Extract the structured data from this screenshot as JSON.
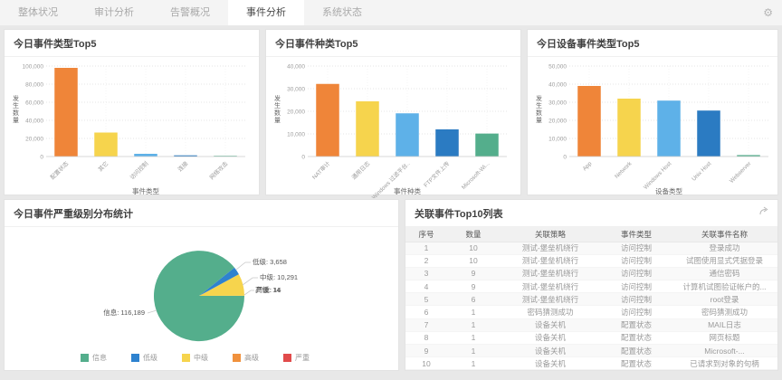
{
  "nav": {
    "tabs": [
      {
        "label": "整体状况",
        "active": false
      },
      {
        "label": "审计分析",
        "active": false
      },
      {
        "label": "告警概况",
        "active": false
      },
      {
        "label": "事件分析",
        "active": true
      },
      {
        "label": "系统状态",
        "active": false
      }
    ]
  },
  "palette": {
    "bar_colors": [
      "#ef8539",
      "#f6d44d",
      "#5eb1e8",
      "#2b7bc2",
      "#54ae8c"
    ],
    "grid": "#dddddd",
    "axis": "#cccccc"
  },
  "chart_data": [
    {
      "type": "bar",
      "title": "今日事件类型Top5",
      "categories": [
        "配置状态",
        "其它",
        "访问控制",
        "连接",
        "网络攻击"
      ],
      "values": [
        98000,
        26500,
        3000,
        1300,
        250
      ],
      "xlabel": "事件类型",
      "ylabel": "发生数量",
      "ylim": [
        0,
        100000
      ],
      "yticks": [
        0,
        20000,
        40000,
        60000,
        80000,
        100000
      ],
      "grid": "dotted",
      "colors": [
        "#ef8539",
        "#f6d44d",
        "#5eb1e8",
        "#2b7bc2",
        "#54ae8c"
      ]
    },
    {
      "type": "bar",
      "title": "今日事件种类Top5",
      "categories": [
        "NAT审计",
        "通用日志",
        "Windows 过滤平台..",
        "FTP文件上传",
        "Microsoft-Wi..."
      ],
      "values": [
        32100,
        24400,
        19100,
        12000,
        10150
      ],
      "xlabel": "事件种类",
      "ylabel": "发生数量",
      "ylim": [
        0,
        40000
      ],
      "yticks": [
        0,
        10000,
        20000,
        30000,
        40000
      ],
      "grid": "dotted",
      "colors": [
        "#ef8539",
        "#f6d44d",
        "#5eb1e8",
        "#2b7bc2",
        "#54ae8c"
      ]
    },
    {
      "type": "bar",
      "title": "今日设备事件类型Top5",
      "categories": [
        "App",
        "Network",
        "Windows Host",
        "Unix Host",
        "Webserver"
      ],
      "values": [
        39000,
        32000,
        30900,
        25400,
        800
      ],
      "xlabel": "设备类型",
      "ylabel": "发生数量",
      "ylim": [
        0,
        50000
      ],
      "yticks": [
        0,
        10000,
        20000,
        30000,
        40000,
        50000
      ],
      "grid": "dotted",
      "colors": [
        "#ef8539",
        "#f6d44d",
        "#5eb1e8",
        "#2b7bc2",
        "#54ae8c"
      ]
    },
    {
      "type": "pie",
      "title": "今日事件严重级别分布统计",
      "slices": [
        {
          "name": "信息",
          "value": 116189,
          "color": "#54ae8c"
        },
        {
          "name": "低级",
          "value": 3658,
          "color": "#2e82cf"
        },
        {
          "name": "中级",
          "value": 10291,
          "color": "#f6d44d"
        },
        {
          "name": "高级",
          "value": 14,
          "color": "#f0913d"
        },
        {
          "name": "严重",
          "value": 16,
          "color": "#e14b4b"
        }
      ],
      "legend": [
        "信息",
        "低级",
        "中级",
        "高级",
        "严重"
      ],
      "legend_position": "bottom"
    }
  ],
  "table": {
    "title": "关联事件Top10列表",
    "columns": [
      "序号",
      "数量",
      "关联策略",
      "事件类型",
      "关联事件名称"
    ],
    "rows": [
      [
        "1",
        "10",
        "测试-堡垒机绕行",
        "访问控制",
        "登录成功"
      ],
      [
        "2",
        "10",
        "测试-堡垒机绕行",
        "访问控制",
        "试图使用显式凭据登录"
      ],
      [
        "3",
        "9",
        "测试-堡垒机绕行",
        "访问控制",
        "通信密码"
      ],
      [
        "4",
        "9",
        "测试-堡垒机绕行",
        "访问控制",
        "计算机试图验证帐户的..."
      ],
      [
        "5",
        "6",
        "测试-堡垒机绕行",
        "访问控制",
        "root登录"
      ],
      [
        "6",
        "1",
        "密码猜测成功",
        "访问控制",
        "密码猜测成功"
      ],
      [
        "7",
        "1",
        "设备关机",
        "配置状态",
        "MAIL日志"
      ],
      [
        "8",
        "1",
        "设备关机",
        "配置状态",
        "网页标题"
      ],
      [
        "9",
        "1",
        "设备关机",
        "配置状态",
        "Microsoft-..."
      ],
      [
        "10",
        "1",
        "设备关机",
        "配置状态",
        "已请求到对象的句柄"
      ]
    ]
  }
}
